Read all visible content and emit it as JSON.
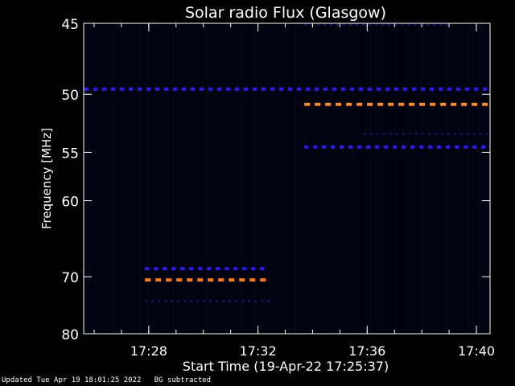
{
  "chart_data": {
    "type": "heatmap",
    "title": "Solar radio Flux (Glasgow)",
    "xlabel": "Start Time (19-Apr-22 17:25:37)",
    "ylabel": "Frequency [MHz]",
    "x_ticks": [
      "17:28",
      "17:32",
      "17:36",
      "17:40"
    ],
    "y_ticks": [
      45,
      50,
      55,
      60,
      70,
      80
    ],
    "y_scale": "reciprocal",
    "xlim": [
      "17:25:37",
      "17:40:30"
    ],
    "ylim": [
      80,
      45
    ],
    "background": "#000000",
    "features": [
      {
        "label": "strong",
        "color": "#ff8a2a",
        "freq": 50.8,
        "t_start": "17:33:40",
        "t_end": "17:40:30"
      },
      {
        "label": "strong",
        "color": "#ff7a1a",
        "freq": 70.5,
        "t_start": "17:27:50",
        "t_end": "17:32:30"
      },
      {
        "label": "medium",
        "color": "#2a1aff",
        "freq": 49.6,
        "t_start": "17:25:37",
        "t_end": "17:40:30"
      },
      {
        "label": "medium",
        "color": "#2a1aff",
        "freq": 54.5,
        "t_start": "17:33:40",
        "t_end": "17:40:30"
      },
      {
        "label": "medium",
        "color": "#2a1aff",
        "freq": 68.8,
        "t_start": "17:27:50",
        "t_end": "17:32:30"
      },
      {
        "label": "faint",
        "color": "#1a1a7a",
        "freq": 53.3,
        "t_start": "17:35:50",
        "t_end": "17:40:30"
      },
      {
        "label": "faint",
        "color": "#1a1a7a",
        "freq": 74.0,
        "t_start": "17:27:50",
        "t_end": "17:32:30"
      },
      {
        "label": "faint",
        "color": "#1a1a7a",
        "freq": 45.1,
        "t_start": "17:33:40",
        "t_end": "17:39:00"
      }
    ]
  },
  "footer": {
    "updated": "Updated Tue Apr 19 18:01:25 2022",
    "note": "BG subtracted"
  }
}
